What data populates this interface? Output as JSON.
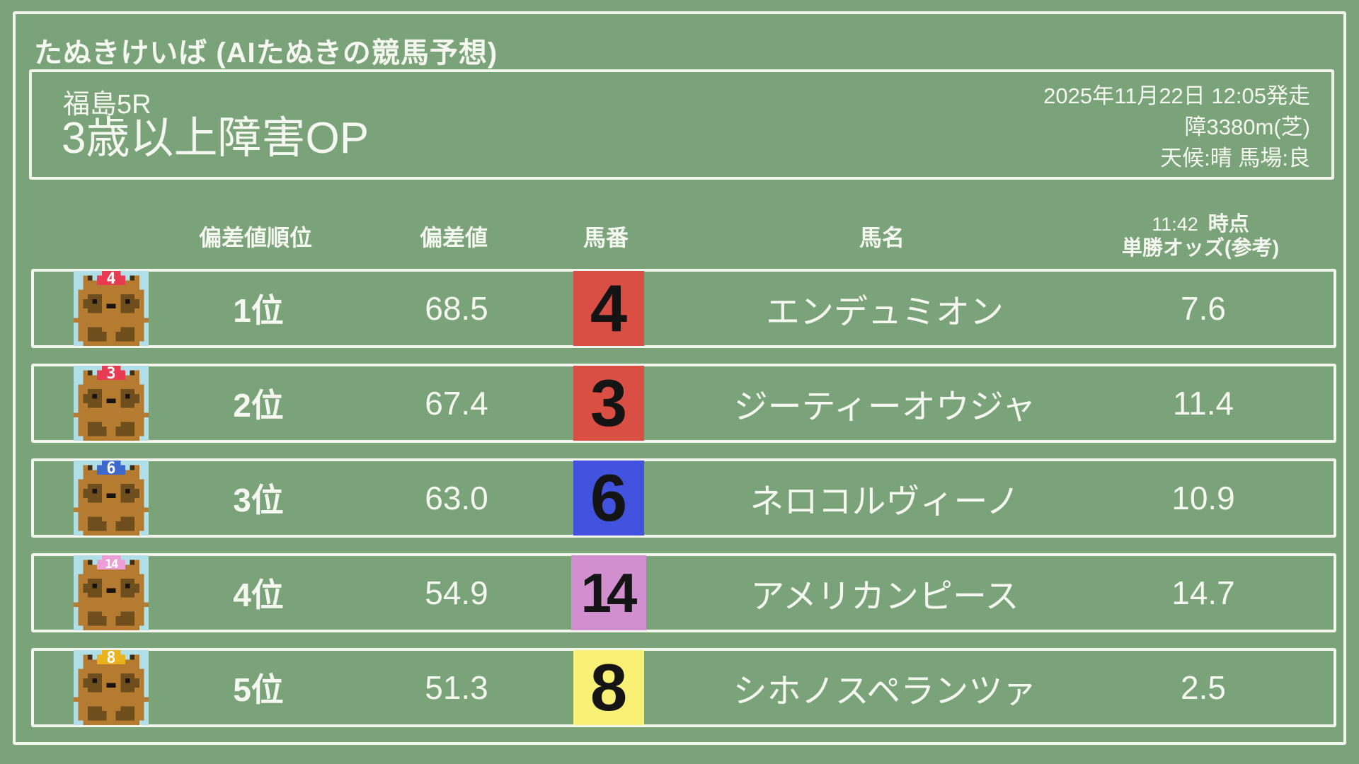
{
  "site_title": "たぬきけいば (AIたぬきの競馬予想)",
  "race": {
    "course": "福島5R",
    "name": "3歳以上障害OP",
    "start": "2025年11月22日 12:05発走",
    "distance": "障3380m(芝)",
    "conditions": "天候:晴 馬場:良"
  },
  "table": {
    "headers": {
      "rank": "偏差値順位",
      "score": "偏差値",
      "number": "馬番",
      "horse": "馬名",
      "odds_time": "11:42",
      "odds_time_suffix": "時点",
      "odds_label": "単勝オッズ(参考)"
    },
    "rows": [
      {
        "rank": "1位",
        "score": "68.5",
        "number": "4",
        "horse": "エンデュミオン",
        "odds": "7.6",
        "waku_color": "#d94f44",
        "cap_color": "#e83a50"
      },
      {
        "rank": "2位",
        "score": "67.4",
        "number": "3",
        "horse": "ジーティーオウジャ",
        "odds": "11.4",
        "waku_color": "#d94f44",
        "cap_color": "#e83a50"
      },
      {
        "rank": "3位",
        "score": "63.0",
        "number": "6",
        "horse": "ネロコルヴィーノ",
        "odds": "10.9",
        "waku_color": "#4153de",
        "cap_color": "#3d68cc"
      },
      {
        "rank": "4位",
        "score": "54.9",
        "number": "14",
        "horse": "アメリカンピース",
        "odds": "14.7",
        "waku_color": "#d28fd0",
        "cap_color": "#ec9ed6"
      },
      {
        "rank": "5位",
        "score": "51.3",
        "number": "8",
        "horse": "シホノスペランツァ",
        "odds": "2.5",
        "waku_color": "#f8f175",
        "cap_color": "#eab31e"
      }
    ]
  },
  "colors": {
    "background": "#7ba379",
    "chalk_line": "#f2f6ec",
    "text": "#f5f8f0",
    "waku_number_text": "#141414",
    "icon_background": "#b0dfe8",
    "tanuki_body": "#b57b31",
    "tanuki_patch": "#6e4e1d",
    "tanuki_ear": "#3f2c11",
    "tanuki_eye": "#191310",
    "cap_number_text": "#ffffff"
  }
}
